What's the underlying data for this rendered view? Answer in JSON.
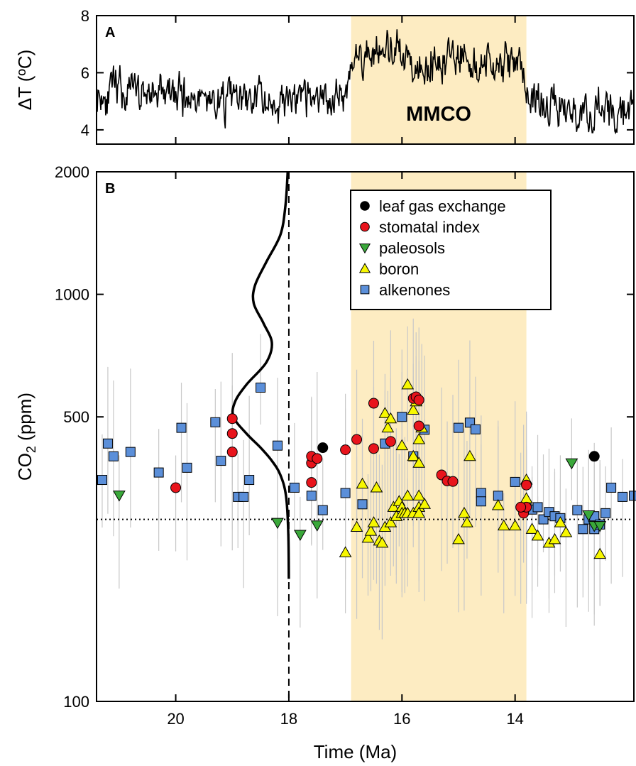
{
  "colors": {
    "shade": "#fdecc2",
    "leaf": "#000000",
    "stomatal": "#e8141c",
    "paleosols": "#3aa83a",
    "boron": "#f7f700",
    "alkenones": "#5b8fd9",
    "errorbar": "#c8c8c8"
  },
  "chart_data": [
    {
      "type": "line",
      "panel_label": "A",
      "title": "",
      "xlabel": "",
      "ylabel": "ΔT (ºC)",
      "xlim": [
        21.4,
        11.9
      ],
      "ylim": [
        3.5,
        8
      ],
      "yticks": [
        "4",
        "6",
        "8"
      ],
      "annotation": "MMCO",
      "shaded_interval": [
        16.9,
        13.8
      ],
      "series_profile": [
        {
          "x": 21.4,
          "y": 5.3
        },
        {
          "x": 20.5,
          "y": 5.3
        },
        {
          "x": 19.5,
          "y": 5.1
        },
        {
          "x": 18.5,
          "y": 5.0
        },
        {
          "x": 17.5,
          "y": 5.0
        },
        {
          "x": 17.0,
          "y": 5.3
        },
        {
          "x": 16.9,
          "y": 6.4
        },
        {
          "x": 16.5,
          "y": 6.7
        },
        {
          "x": 15.5,
          "y": 6.4
        },
        {
          "x": 15.0,
          "y": 6.7
        },
        {
          "x": 14.5,
          "y": 6.3
        },
        {
          "x": 13.9,
          "y": 6.3
        },
        {
          "x": 13.8,
          "y": 5.3
        },
        {
          "x": 13.0,
          "y": 4.6
        },
        {
          "x": 12.5,
          "y": 4.6
        },
        {
          "x": 11.9,
          "y": 4.8
        }
      ],
      "noise_amplitude": 0.55
    },
    {
      "type": "scatter",
      "panel_label": "B",
      "title": "",
      "xlabel": "Time (Ma)",
      "ylabel_main": "CO",
      "ylabel_sub": "2",
      "ylabel_unit": " (ppm)",
      "xlim": [
        21.4,
        11.9
      ],
      "ylim": [
        100,
        2000
      ],
      "yscale": "log",
      "yticks": [
        "100",
        "500",
        "1000",
        "2000"
      ],
      "xticks": [
        "20",
        "18",
        "16",
        "14"
      ],
      "shaded_interval": [
        16.9,
        13.8
      ],
      "reference_line_ppm": 280,
      "vertical_line_ma": 18.0,
      "legend_position": "top-right",
      "legend": [
        {
          "key": "leaf",
          "label": "leaf gas exchange"
        },
        {
          "key": "stomatal",
          "label": "stomatal index"
        },
        {
          "key": "paleosols",
          "label": "paleosols"
        },
        {
          "key": "boron",
          "label": "boron"
        },
        {
          "key": "alkenones",
          "label": "alkenones"
        }
      ],
      "distribution_curve": [
        {
          "x": 18.0,
          "y": 200
        },
        {
          "x": 18.01,
          "y": 260
        },
        {
          "x": 18.05,
          "y": 320
        },
        {
          "x": 18.15,
          "y": 360
        },
        {
          "x": 18.3,
          "y": 390
        },
        {
          "x": 18.5,
          "y": 420
        },
        {
          "x": 18.75,
          "y": 455
        },
        {
          "x": 18.98,
          "y": 500
        },
        {
          "x": 18.95,
          "y": 545
        },
        {
          "x": 18.75,
          "y": 600
        },
        {
          "x": 18.4,
          "y": 680
        },
        {
          "x": 18.3,
          "y": 760
        },
        {
          "x": 18.45,
          "y": 850
        },
        {
          "x": 18.62,
          "y": 950
        },
        {
          "x": 18.6,
          "y": 1050
        },
        {
          "x": 18.4,
          "y": 1200
        },
        {
          "x": 18.15,
          "y": 1400
        },
        {
          "x": 18.06,
          "y": 1650
        },
        {
          "x": 18.02,
          "y": 2000
        }
      ],
      "series": [
        {
          "name": "leaf gas exchange",
          "key": "leaf",
          "marker": "circle",
          "points": [
            [
              17.4,
              420
            ],
            [
              12.6,
              400
            ]
          ]
        },
        {
          "name": "stomatal index",
          "key": "stomatal",
          "marker": "circle",
          "points": [
            [
              20.0,
              335
            ],
            [
              19.0,
              495
            ],
            [
              19.0,
              455
            ],
            [
              19.0,
              410
            ],
            [
              17.6,
              385
            ],
            [
              17.6,
              400
            ],
            [
              17.6,
              345
            ],
            [
              17.5,
              395
            ],
            [
              17.0,
              415
            ],
            [
              16.8,
              440
            ],
            [
              16.5,
              418
            ],
            [
              16.5,
              540
            ],
            [
              16.2,
              435
            ],
            [
              15.8,
              555
            ],
            [
              15.75,
              560
            ],
            [
              15.7,
              550
            ],
            [
              15.7,
              475
            ],
            [
              15.3,
              360
            ],
            [
              15.2,
              348
            ],
            [
              15.1,
              347
            ],
            [
              13.8,
              340
            ],
            [
              13.85,
              290
            ],
            [
              13.8,
              300
            ],
            [
              13.9,
              300
            ]
          ]
        },
        {
          "name": "paleosols",
          "key": "paleosols",
          "marker": "triangle-down",
          "points": [
            [
              21.0,
              321
            ],
            [
              18.2,
              275
            ],
            [
              17.8,
              257
            ],
            [
              17.5,
              271
            ],
            [
              13.0,
              385
            ],
            [
              12.7,
              287
            ],
            [
              12.6,
              270
            ],
            [
              12.5,
              270
            ]
          ]
        },
        {
          "name": "boron",
          "key": "boron",
          "marker": "triangle-up",
          "points": [
            [
              17.0,
              232
            ],
            [
              16.8,
              268
            ],
            [
              16.7,
              342
            ],
            [
              16.6,
              252
            ],
            [
              16.55,
              262
            ],
            [
              16.5,
              275
            ],
            [
              16.45,
              335
            ],
            [
              16.4,
              248
            ],
            [
              16.35,
              245
            ],
            [
              16.3,
              268
            ],
            [
              16.3,
              510
            ],
            [
              16.25,
              470
            ],
            [
              16.2,
              275
            ],
            [
              16.2,
              495
            ],
            [
              16.15,
              300
            ],
            [
              16.1,
              285
            ],
            [
              16.1,
              285
            ],
            [
              16.05,
              310
            ],
            [
              16.0,
              300
            ],
            [
              16.0,
              290
            ],
            [
              16.0,
              425
            ],
            [
              15.95,
              290
            ],
            [
              15.9,
              600
            ],
            [
              15.9,
              290
            ],
            [
              15.9,
              320
            ],
            [
              15.8,
              290
            ],
            [
              15.8,
              400
            ],
            [
              15.8,
              520
            ],
            [
              15.75,
              545
            ],
            [
              15.7,
              300
            ],
            [
              15.7,
              290
            ],
            [
              15.7,
              320
            ],
            [
              15.7,
              385
            ],
            [
              15.7,
              440
            ],
            [
              15.65,
              470
            ],
            [
              15.6,
              305
            ],
            [
              15.0,
              250
            ],
            [
              14.9,
              290
            ],
            [
              14.85,
              275
            ],
            [
              14.8,
              400
            ],
            [
              14.3,
              303
            ],
            [
              14.2,
              270
            ],
            [
              14.0,
              270
            ],
            [
              13.8,
              350
            ],
            [
              13.8,
              315
            ],
            [
              13.7,
              265
            ],
            [
              13.6,
              255
            ],
            [
              13.4,
              245
            ],
            [
              13.3,
              250
            ],
            [
              13.2,
              275
            ],
            [
              13.1,
              260
            ],
            [
              12.5,
              230
            ]
          ]
        },
        {
          "name": "alkenones",
          "key": "alkenones",
          "marker": "square",
          "points": [
            [
              21.3,
              350
            ],
            [
              21.2,
              430
            ],
            [
              21.1,
              400
            ],
            [
              20.8,
              410
            ],
            [
              20.3,
              365
            ],
            [
              19.9,
              470
            ],
            [
              19.8,
              375
            ],
            [
              19.3,
              485
            ],
            [
              19.2,
              390
            ],
            [
              18.9,
              318
            ],
            [
              18.8,
              318
            ],
            [
              18.7,
              350
            ],
            [
              18.5,
              590
            ],
            [
              18.2,
              425
            ],
            [
              17.9,
              335
            ],
            [
              17.6,
              320
            ],
            [
              17.4,
              295
            ],
            [
              17.0,
              325
            ],
            [
              16.7,
              305
            ],
            [
              16.3,
              430
            ],
            [
              16.0,
              500
            ],
            [
              15.8,
              400
            ],
            [
              15.6,
              465
            ],
            [
              15.0,
              470
            ],
            [
              14.8,
              484
            ],
            [
              14.7,
              466
            ],
            [
              14.6,
              325
            ],
            [
              14.6,
              310
            ],
            [
              14.3,
              320
            ],
            [
              14.0,
              346
            ],
            [
              13.8,
              302
            ],
            [
              13.7,
              296
            ],
            [
              13.6,
              300
            ],
            [
              13.5,
              280
            ],
            [
              13.4,
              292
            ],
            [
              13.3,
              285
            ],
            [
              13.2,
              282
            ],
            [
              12.9,
              295
            ],
            [
              12.8,
              265
            ],
            [
              12.7,
              280
            ],
            [
              12.6,
              285
            ],
            [
              12.6,
              265
            ],
            [
              12.5,
              272
            ],
            [
              12.4,
              290
            ],
            [
              12.3,
              335
            ],
            [
              12.1,
              318
            ],
            [
              11.9,
              320
            ]
          ]
        }
      ]
    }
  ]
}
